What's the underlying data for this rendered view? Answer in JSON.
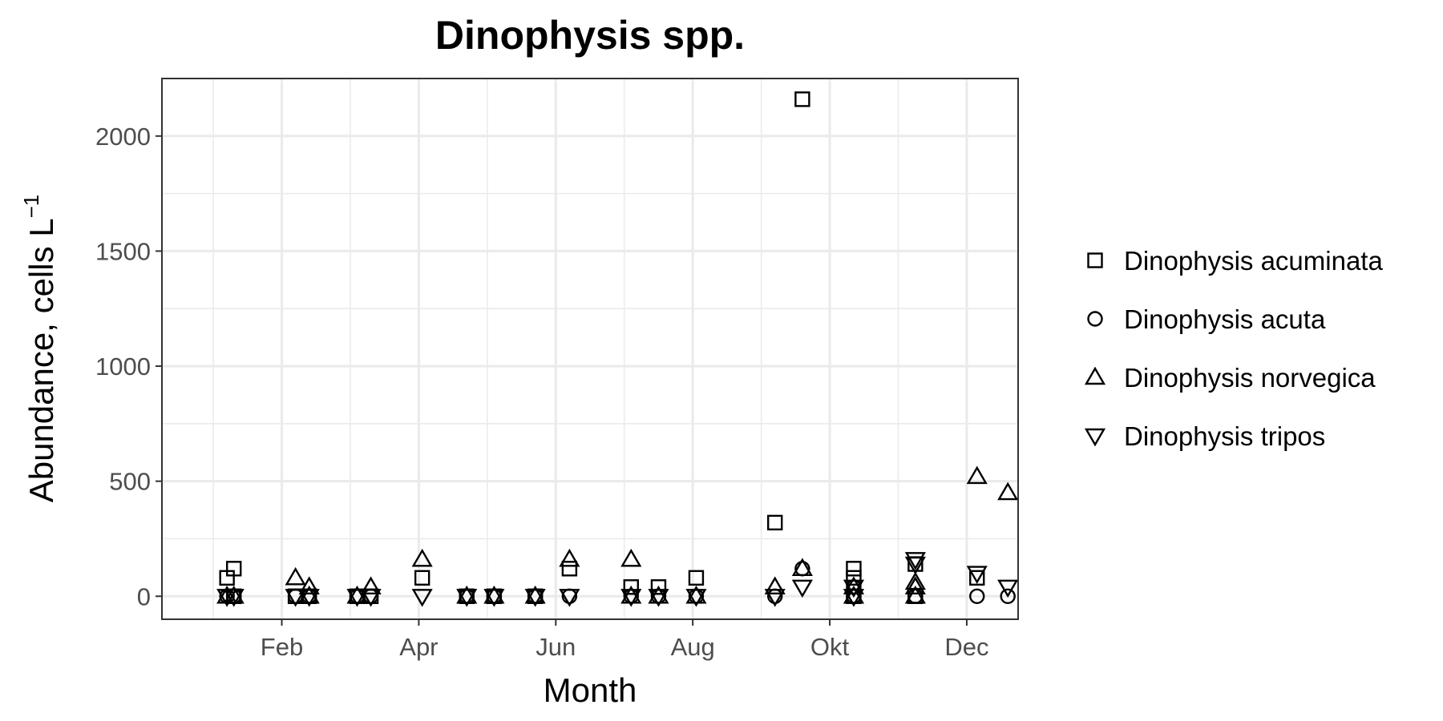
{
  "chart_data": {
    "type": "scatter",
    "title": "Dinophysis spp.",
    "xlabel": "Month",
    "ylabel_main": "Abundance, cells L",
    "ylabel_sup": "−1",
    "x_unit": "month",
    "xlim": [
      0.25,
      12.75
    ],
    "ylim": [
      -100,
      2250
    ],
    "x_ticks": [
      {
        "value": 2,
        "label": "Feb"
      },
      {
        "value": 4,
        "label": "Apr"
      },
      {
        "value": 6,
        "label": "Jun"
      },
      {
        "value": 8,
        "label": "Aug"
      },
      {
        "value": 10,
        "label": "Okt"
      },
      {
        "value": 12,
        "label": "Dec"
      }
    ],
    "y_ticks": [
      0,
      500,
      1000,
      1500,
      2000
    ],
    "grid": true,
    "legend_position": "right",
    "series": [
      {
        "name": "Dinophysis acuminata",
        "shape": "square",
        "points": [
          [
            1.2,
            80
          ],
          [
            1.3,
            120
          ],
          [
            1.3,
            0
          ],
          [
            2.2,
            0
          ],
          [
            2.4,
            0
          ],
          [
            3.1,
            0
          ],
          [
            3.3,
            0
          ],
          [
            4.05,
            80
          ],
          [
            4.7,
            0
          ],
          [
            5.1,
            0
          ],
          [
            5.7,
            0
          ],
          [
            6.2,
            120
          ],
          [
            7.1,
            40
          ],
          [
            7.5,
            40
          ],
          [
            8.05,
            80
          ],
          [
            9.2,
            320
          ],
          [
            9.6,
            2160
          ],
          [
            10.35,
            120
          ],
          [
            10.35,
            80
          ],
          [
            10.35,
            0
          ],
          [
            11.25,
            140
          ],
          [
            11.25,
            0
          ],
          [
            12.15,
            80
          ]
        ]
      },
      {
        "name": "Dinophysis acuta",
        "shape": "circle",
        "points": [
          [
            1.2,
            0
          ],
          [
            1.3,
            0
          ],
          [
            2.2,
            0
          ],
          [
            2.4,
            0
          ],
          [
            3.1,
            0
          ],
          [
            3.3,
            0
          ],
          [
            4.7,
            0
          ],
          [
            5.1,
            0
          ],
          [
            5.7,
            0
          ],
          [
            6.2,
            0
          ],
          [
            7.1,
            0
          ],
          [
            7.5,
            0
          ],
          [
            8.05,
            0
          ],
          [
            9.2,
            0
          ],
          [
            9.6,
            120
          ],
          [
            10.35,
            40
          ],
          [
            10.35,
            0
          ],
          [
            11.25,
            0
          ],
          [
            12.15,
            0
          ],
          [
            12.6,
            0
          ]
        ]
      },
      {
        "name": "Dinophysis norvegica",
        "shape": "triangle-up",
        "points": [
          [
            1.2,
            0
          ],
          [
            1.3,
            0
          ],
          [
            2.2,
            80
          ],
          [
            2.4,
            40
          ],
          [
            2.4,
            0
          ],
          [
            3.1,
            0
          ],
          [
            3.3,
            40
          ],
          [
            4.05,
            160
          ],
          [
            4.7,
            0
          ],
          [
            5.1,
            0
          ],
          [
            5.7,
            0
          ],
          [
            6.2,
            160
          ],
          [
            7.1,
            160
          ],
          [
            7.1,
            0
          ],
          [
            7.5,
            0
          ],
          [
            8.05,
            0
          ],
          [
            9.2,
            40
          ],
          [
            9.6,
            120
          ],
          [
            10.35,
            40
          ],
          [
            10.35,
            0
          ],
          [
            11.25,
            40
          ],
          [
            11.25,
            60
          ],
          [
            11.25,
            0
          ],
          [
            12.15,
            520
          ],
          [
            12.6,
            450
          ]
        ]
      },
      {
        "name": "Dinophysis tripos",
        "shape": "triangle-down",
        "points": [
          [
            1.2,
            0
          ],
          [
            1.3,
            0
          ],
          [
            2.2,
            0
          ],
          [
            2.4,
            0
          ],
          [
            3.1,
            0
          ],
          [
            3.3,
            0
          ],
          [
            4.05,
            0
          ],
          [
            4.7,
            0
          ],
          [
            5.1,
            0
          ],
          [
            5.7,
            0
          ],
          [
            6.2,
            0
          ],
          [
            7.1,
            0
          ],
          [
            7.5,
            0
          ],
          [
            8.05,
            0
          ],
          [
            9.2,
            0
          ],
          [
            9.6,
            40
          ],
          [
            10.35,
            40
          ],
          [
            10.35,
            0
          ],
          [
            11.25,
            160
          ],
          [
            11.25,
            140
          ],
          [
            12.15,
            100
          ],
          [
            12.6,
            40
          ]
        ]
      }
    ]
  }
}
